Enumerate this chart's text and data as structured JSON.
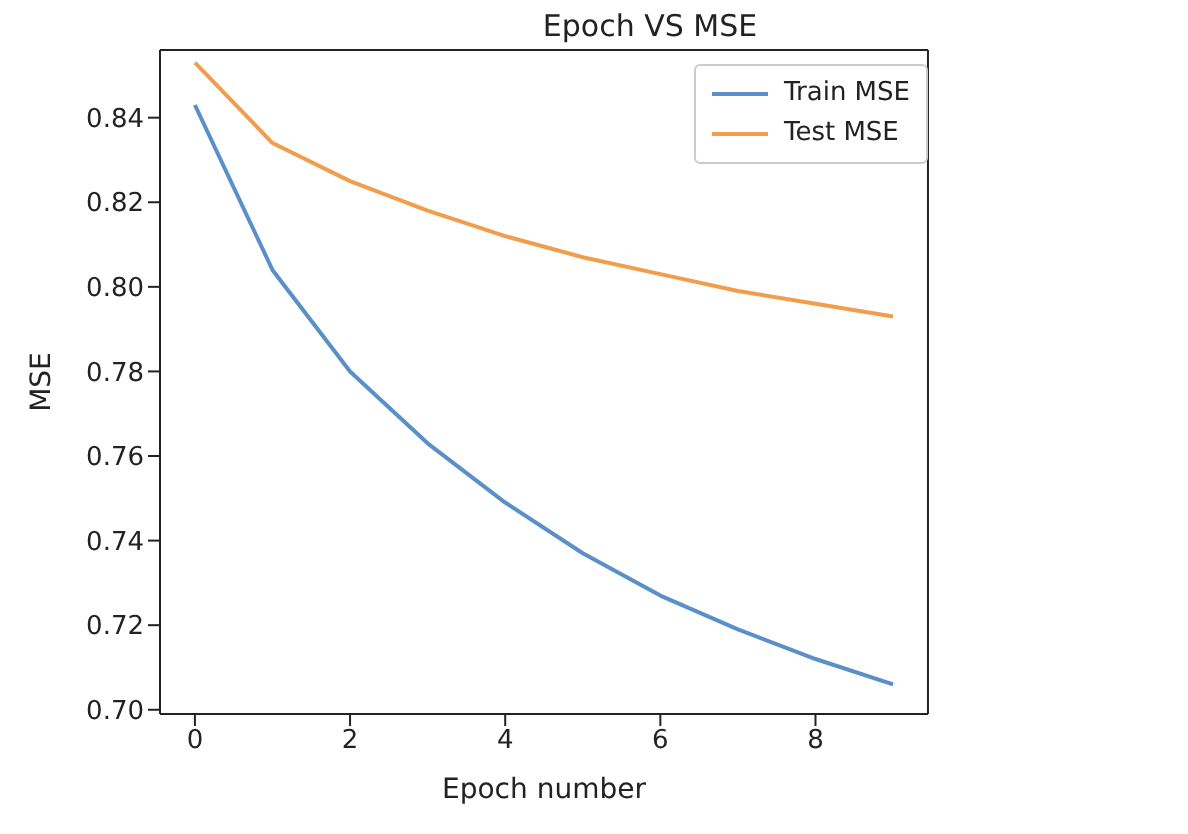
{
  "chart_data": {
    "type": "line",
    "title": "Epoch VS MSE",
    "xlabel": "Epoch number",
    "ylabel": "MSE",
    "x": [
      0,
      1,
      2,
      3,
      4,
      5,
      6,
      7,
      8,
      9
    ],
    "series": [
      {
        "name": "Train MSE",
        "color": "#5a8fc8",
        "values": [
          0.843,
          0.804,
          0.78,
          0.763,
          0.749,
          0.737,
          0.727,
          0.719,
          0.712,
          0.706
        ]
      },
      {
        "name": "Test MSE",
        "color": "#f29d4b",
        "values": [
          0.853,
          0.834,
          0.825,
          0.818,
          0.812,
          0.807,
          0.803,
          0.799,
          0.796,
          0.793
        ]
      }
    ],
    "xlim": [
      -0.45,
      9.45
    ],
    "xticks": [
      0,
      2,
      4,
      6,
      8
    ],
    "ylim": [
      0.699,
      0.856
    ],
    "yticks": [
      {
        "value": 0.7,
        "label": "0.70"
      },
      {
        "value": 0.72,
        "label": "0.72"
      },
      {
        "value": 0.74,
        "label": "0.74"
      },
      {
        "value": 0.76,
        "label": "0.76"
      },
      {
        "value": 0.78,
        "label": "0.78"
      },
      {
        "value": 0.8,
        "label": "0.80"
      },
      {
        "value": 0.82,
        "label": "0.82"
      },
      {
        "value": 0.84,
        "label": "0.84"
      }
    ],
    "grid": false,
    "legend": "top right",
    "marker": "none",
    "line_style": "solid"
  }
}
